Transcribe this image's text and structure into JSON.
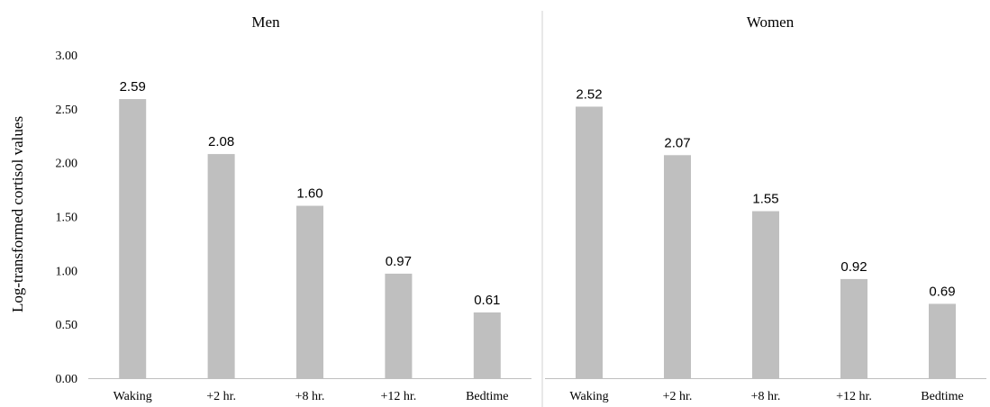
{
  "chart_data": [
    {
      "type": "bar",
      "title": "Men",
      "ylabel": "Log-transformed cortisol values",
      "categories": [
        "Waking",
        "+2 hr.",
        "+8 hr.",
        "+12 hr.",
        "Bedtime"
      ],
      "values": [
        2.59,
        2.08,
        1.6,
        0.97,
        0.61
      ],
      "value_labels": [
        "2.59",
        "2.08",
        "1.60",
        "0.97",
        "0.61"
      ],
      "ylim": [
        0,
        3
      ],
      "yticks": [
        "0.00",
        "0.50",
        "1.00",
        "1.50",
        "2.00",
        "2.50",
        "3.00"
      ],
      "bar_color": "#bfbfbf",
      "grid": false
    },
    {
      "type": "bar",
      "title": "Women",
      "categories": [
        "Waking",
        "+2 hr.",
        "+8 hr.",
        "+12 hr.",
        "Bedtime"
      ],
      "values": [
        2.52,
        2.07,
        1.55,
        0.92,
        0.69
      ],
      "value_labels": [
        "2.52",
        "2.07",
        "1.55",
        "0.92",
        "0.69"
      ],
      "ylim": [
        0,
        3
      ],
      "bar_color": "#bfbfbf",
      "grid": false
    }
  ]
}
